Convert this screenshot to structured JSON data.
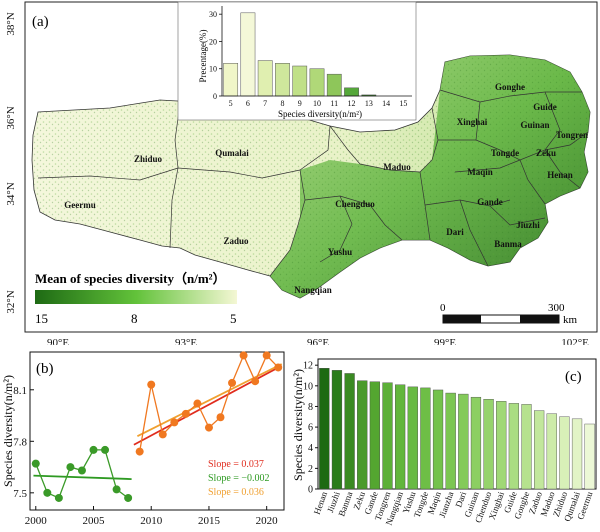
{
  "panel_a": {
    "label": "(a)",
    "lat_labels": [
      "38°N",
      "36°N",
      "34°N",
      "32°N"
    ],
    "lon_labels": [
      "90°E",
      "93°E",
      "96°E",
      "99°E",
      "102°E"
    ],
    "counties": [
      {
        "name": "Zhiduo"
      },
      {
        "name": "Qumalai"
      },
      {
        "name": "Maduo"
      },
      {
        "name": "Geermu"
      },
      {
        "name": "Chengduo"
      },
      {
        "name": "Zaduo"
      },
      {
        "name": "Yushu"
      },
      {
        "name": "Nangqian"
      },
      {
        "name": "Dari"
      },
      {
        "name": "Gande"
      },
      {
        "name": "Maqin"
      },
      {
        "name": "Banma"
      },
      {
        "name": "Jiuzhi"
      },
      {
        "name": "Gonghe"
      },
      {
        "name": "Xinghai"
      },
      {
        "name": "Guide"
      },
      {
        "name": "Guinan"
      },
      {
        "name": "Tongren"
      },
      {
        "name": "Tongde"
      },
      {
        "name": "Zeku"
      },
      {
        "name": "Henan"
      }
    ],
    "legend": {
      "title": "Mean of species diversity（n/m²）",
      "tick_labels": [
        "15",
        "8",
        "5"
      ],
      "colors": [
        "#1e6a14",
        "#62c23a",
        "#f4f7d4"
      ]
    },
    "scalebar": {
      "labels": [
        "0",
        "300"
      ],
      "unit": "km"
    },
    "inset_chart": {
      "chart_data": {
        "type": "bar",
        "categories": [
          "5",
          "6",
          "7",
          "8",
          "9",
          "10",
          "11",
          "12",
          "13",
          "14",
          "15"
        ],
        "values": [
          12,
          30.5,
          13,
          12,
          11,
          10,
          8,
          3,
          0.4,
          0,
          0
        ],
        "ylabel": "Precentage(%)",
        "xlabel": "Species diversity(n/m²)",
        "yticks": [
          "0",
          "10",
          "20",
          "30"
        ],
        "ylim": [
          0,
          33
        ]
      }
    }
  },
  "panel_b": {
    "label": "(b)",
    "chart_data": {
      "type": "scatter",
      "ylabel": "Species diversity(n/m²)",
      "xticks": [
        "2000",
        "2005",
        "2010",
        "2015",
        "2020"
      ],
      "yticks": [
        "7.5",
        "7.8",
        "8.1"
      ],
      "xlim": [
        1999.5,
        2021.5
      ],
      "ylim": [
        7.4,
        8.32
      ],
      "series": [
        {
          "color": "#3a9a28",
          "x": [
            2000,
            2001,
            2002,
            2003,
            2004,
            2005,
            2006,
            2007,
            2008
          ],
          "y": [
            7.67,
            7.5,
            7.47,
            7.65,
            7.63,
            7.75,
            7.75,
            7.52,
            7.47
          ]
        },
        {
          "color": "#f07820",
          "x": [
            2009,
            2010,
            2011,
            2012,
            2013,
            2014,
            2015,
            2016,
            2017,
            2018,
            2019,
            2020,
            2021
          ],
          "y": [
            7.74,
            8.13,
            7.84,
            7.91,
            7.96,
            8.02,
            7.88,
            7.94,
            8.14,
            8.3,
            8.15,
            8.3,
            8.23
          ]
        }
      ],
      "trendlines": [
        {
          "label": "Slope = 0.037",
          "color": "#e02c1e",
          "x": [
            2008.5,
            2021.3
          ],
          "y": [
            7.78,
            8.24
          ]
        },
        {
          "label": "Slope = −0.002",
          "color": "#2e9a22",
          "x": [
            1999.8,
            2008.3
          ],
          "y": [
            7.6,
            7.58
          ]
        },
        {
          "label": "Slope = 0.036",
          "color": "#f0a030",
          "x": [
            2008.8,
            2021.3
          ],
          "y": [
            7.83,
            8.25
          ]
        }
      ]
    }
  },
  "panel_c": {
    "label": "(c)",
    "chart_data": {
      "type": "bar",
      "ylabel": "Species diversity(n/m²)",
      "yticks": [
        "0",
        "2",
        "4",
        "6",
        "8",
        "10",
        "12"
      ],
      "ylim": [
        0,
        12.6
      ],
      "categories": [
        "Henan",
        "Jiuzhi",
        "Banma",
        "Zeku",
        "Gande",
        "Tongren",
        "Nangqian",
        "Yushu",
        "Tongde",
        "Maqin",
        "Jianzha",
        "Dari",
        "Guinan",
        "Chenduo",
        "Xinghai",
        "Guide",
        "Gonghe",
        "Zaduo",
        "Maduo",
        "Zhiduo",
        "Qumalai",
        "Geermu"
      ],
      "values": [
        11.7,
        11.5,
        11.2,
        10.5,
        10.4,
        10.3,
        10.1,
        9.9,
        9.8,
        9.6,
        9.3,
        9.2,
        8.9,
        8.7,
        8.5,
        8.3,
        8.2,
        7.6,
        7.3,
        7.0,
        6.8,
        6.3
      ],
      "colors": [
        "#1d6a12",
        "#2a7c1a",
        "#3a8a22",
        "#4a9a2c",
        "#54a630",
        "#5cb038",
        "#62b63c",
        "#68ba42",
        "#6ebe46",
        "#74c24c",
        "#7cc652",
        "#84ca5a",
        "#8ccf62",
        "#96d36c",
        "#a0d876",
        "#aadd82",
        "#b6e28e",
        "#c2e79c",
        "#cdeba9",
        "#d8f0b8",
        "#e2f4c6",
        "#ecf8d6"
      ]
    }
  }
}
